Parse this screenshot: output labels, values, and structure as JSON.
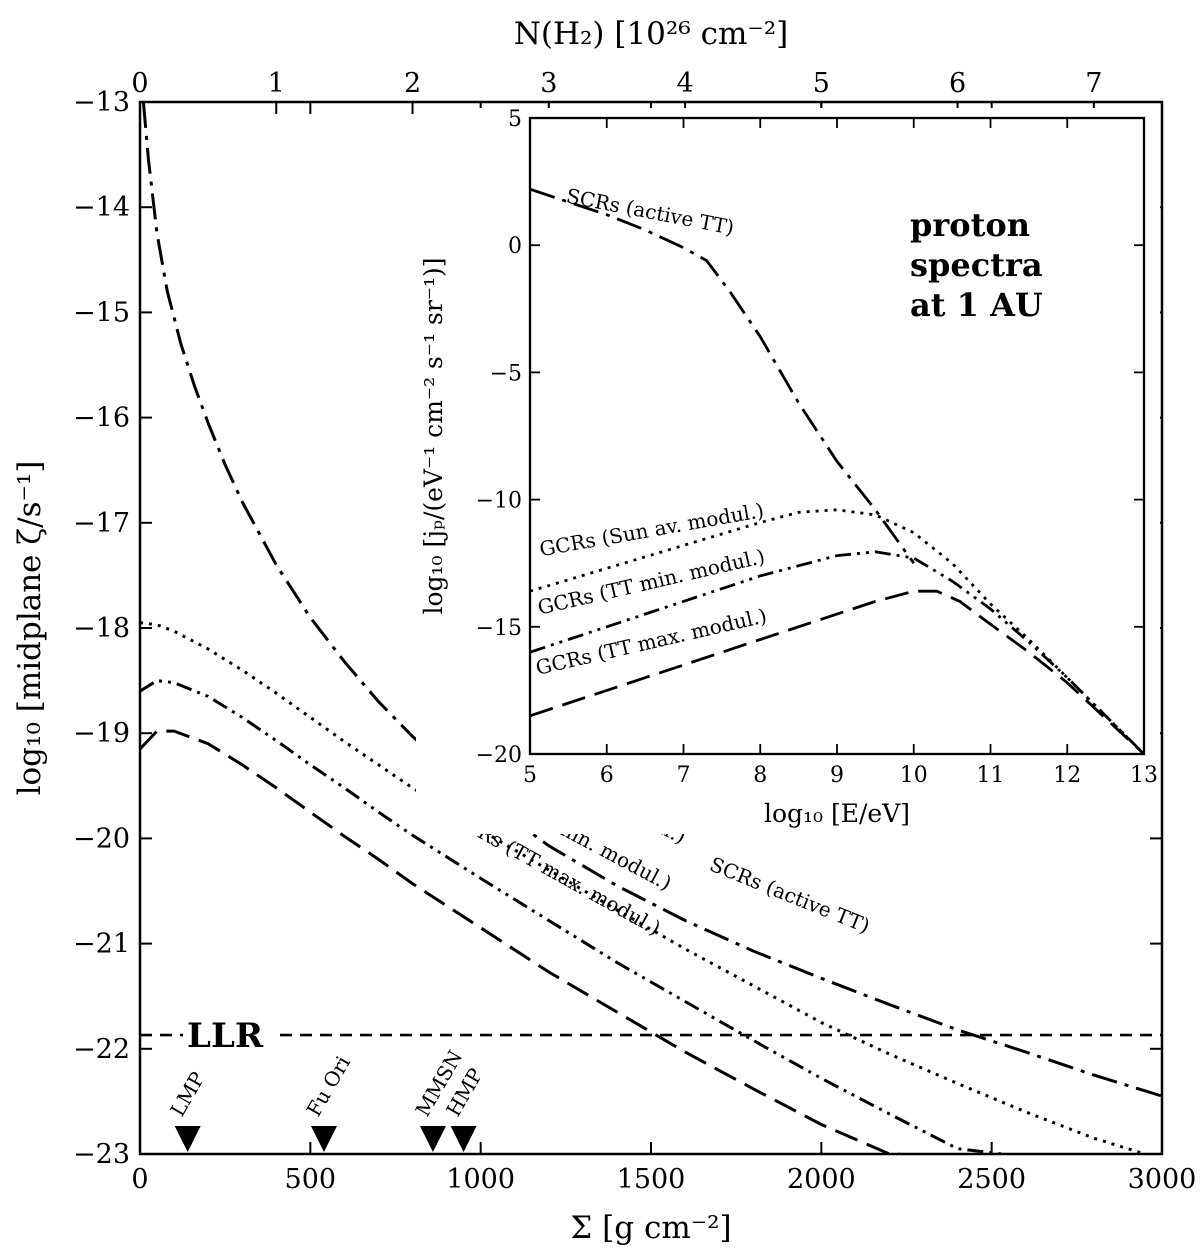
{
  "chart_data": [
    {
      "type": "line",
      "xlabel": "Σ [g cm⁻²]",
      "ylabel": "log₁₀ [midplane ζ/s⁻¹]",
      "x2label": "N(H₂) [10²⁶ cm⁻²]",
      "xlim": [
        0,
        3000
      ],
      "ylim": [
        -23,
        -13
      ],
      "x2lim": [
        0,
        7.5
      ],
      "xticks": [
        0,
        500,
        1000,
        1500,
        2000,
        2500,
        3000
      ],
      "yticks": [
        -23,
        -22,
        -21,
        -20,
        -19,
        -18,
        -17,
        -16,
        -15,
        -14,
        -13
      ],
      "x2ticks": [
        0,
        1,
        2,
        3,
        4,
        5,
        6,
        7
      ],
      "grid": false,
      "series": [
        {
          "name": "SCRs (active TT)",
          "style": "dash-dot",
          "x": [
            10,
            25,
            50,
            80,
            120,
            160,
            200,
            250,
            300,
            350,
            400,
            500,
            600,
            700,
            800,
            900,
            1000,
            1200,
            1400,
            1600,
            1800,
            2000,
            2200,
            2400,
            2600,
            2800,
            3000
          ],
          "y": [
            -13.0,
            -13.55,
            -14.25,
            -14.8,
            -15.3,
            -15.7,
            -16.05,
            -16.45,
            -16.8,
            -17.1,
            -17.4,
            -17.9,
            -18.32,
            -18.7,
            -19.03,
            -19.32,
            -19.6,
            -20.07,
            -20.45,
            -20.78,
            -21.07,
            -21.33,
            -21.58,
            -21.82,
            -22.03,
            -22.25,
            -22.45
          ]
        },
        {
          "name": "GCRs (Sun av. modul.)",
          "style": "dotted",
          "x": [
            0,
            50,
            100,
            200,
            300,
            400,
            500,
            600,
            700,
            800,
            900,
            1000,
            1200,
            1400,
            1600,
            1800,
            2000,
            2200,
            2400,
            2600,
            2800,
            2950
          ],
          "y": [
            -17.95,
            -17.97,
            -18.03,
            -18.2,
            -18.4,
            -18.62,
            -18.85,
            -19.08,
            -19.3,
            -19.52,
            -19.72,
            -19.92,
            -20.3,
            -20.68,
            -21.05,
            -21.4,
            -21.75,
            -22.05,
            -22.33,
            -22.6,
            -22.85,
            -23.0
          ]
        },
        {
          "name": "GCRs (TT min. modul.)",
          "style": "dash-dot-dot",
          "x": [
            0,
            50,
            100,
            200,
            300,
            400,
            500,
            600,
            700,
            800,
            1000,
            1200,
            1400,
            1600,
            1800,
            2000,
            2200,
            2400,
            2530
          ],
          "y": [
            -18.6,
            -18.5,
            -18.52,
            -18.65,
            -18.85,
            -19.07,
            -19.3,
            -19.52,
            -19.75,
            -19.97,
            -20.38,
            -20.78,
            -21.18,
            -21.55,
            -21.92,
            -22.28,
            -22.62,
            -22.95,
            -23.0
          ]
        },
        {
          "name": "GCRs (TT max. modul.)",
          "style": "dashed",
          "x": [
            0,
            50,
            100,
            200,
            300,
            400,
            500,
            600,
            700,
            800,
            1000,
            1200,
            1400,
            1600,
            1800,
            2000,
            2200,
            2230
          ],
          "y": [
            -19.15,
            -18.98,
            -18.98,
            -19.1,
            -19.3,
            -19.52,
            -19.75,
            -19.98,
            -20.2,
            -20.43,
            -20.85,
            -21.27,
            -21.65,
            -22.03,
            -22.38,
            -22.72,
            -23.0,
            -23.0
          ]
        },
        {
          "name": "LLR",
          "style": "short-dash",
          "x": [
            0,
            3000
          ],
          "y": [
            -21.87,
            -21.87
          ]
        }
      ],
      "annotations": [
        {
          "text": "LLR",
          "x": 50,
          "y": -21.87
        },
        {
          "text": "GCRs (Sun av. modul.)",
          "series": "GCRs (Sun av. modul.)"
        },
        {
          "text": "GCRs (TT min. modul.)",
          "series": "GCRs (TT min. modul.)"
        },
        {
          "text": "GCRs (TT max. modul.)",
          "series": "GCRs (TT max. modul.)"
        },
        {
          "text": "SCRs (active TT)",
          "series": "SCRs (active TT)"
        }
      ],
      "markers": [
        {
          "label": "LMP",
          "x": 140
        },
        {
          "label": "Fu Ori",
          "x": 540
        },
        {
          "label": "MMSN",
          "x": 860
        },
        {
          "label": "HMP",
          "x": 950
        }
      ]
    },
    {
      "type": "line",
      "inset": true,
      "xlabel": "log₁₀ [E/eV]",
      "ylabel": "log₁₀ [jₚ/(eV⁻¹ cm⁻² s⁻¹ sr⁻¹)]",
      "xlim": [
        5,
        13
      ],
      "ylim": [
        -20,
        5
      ],
      "xticks": [
        5,
        6,
        7,
        8,
        9,
        10,
        11,
        12,
        13
      ],
      "yticks": [
        -20,
        -15,
        -10,
        -5,
        0,
        5
      ],
      "grid": false,
      "annotation": [
        "proton",
        "spectra",
        "at 1 AU"
      ],
      "series": [
        {
          "name": "SCRs (active TT)",
          "style": "dash-dot",
          "x": [
            5,
            5.5,
            6,
            6.5,
            7,
            7.3,
            7.6,
            8,
            8.5,
            9,
            9.5,
            10
          ],
          "y": [
            2.2,
            1.7,
            1.2,
            0.6,
            -0.1,
            -0.6,
            -1.8,
            -3.6,
            -6.2,
            -8.5,
            -10.4,
            -12.5
          ]
        },
        {
          "name": "GCRs (Sun av. modul.)",
          "style": "dotted",
          "x": [
            5,
            6,
            7,
            8,
            8.5,
            9,
            9.5,
            10,
            10.5,
            11,
            11.5,
            12,
            12.5,
            13
          ],
          "y": [
            -13.6,
            -12.7,
            -11.8,
            -10.9,
            -10.5,
            -10.4,
            -10.6,
            -11.3,
            -12.5,
            -14.1,
            -15.5,
            -17.0,
            -18.5,
            -20.0
          ]
        },
        {
          "name": "GCRs (TT min. modul.)",
          "style": "dash-dot-dot",
          "x": [
            5,
            6,
            7,
            8,
            9,
            9.5,
            10,
            10.5,
            11,
            11.5,
            12,
            12.5,
            13
          ],
          "y": [
            -16.0,
            -15.0,
            -14.0,
            -13.0,
            -12.2,
            -12.05,
            -12.3,
            -13.2,
            -14.3,
            -15.6,
            -17.0,
            -18.5,
            -20.0
          ]
        },
        {
          "name": "GCRs (TT max. modul.)",
          "style": "dashed",
          "x": [
            5,
            6,
            7,
            8,
            9,
            9.5,
            10,
            10.3,
            10.6,
            11,
            11.5,
            12,
            12.5,
            13
          ],
          "y": [
            -18.5,
            -17.5,
            -16.5,
            -15.5,
            -14.5,
            -14.0,
            -13.6,
            -13.6,
            -14.0,
            -14.9,
            -16.0,
            -17.2,
            -18.6,
            -20.0
          ]
        }
      ]
    }
  ]
}
